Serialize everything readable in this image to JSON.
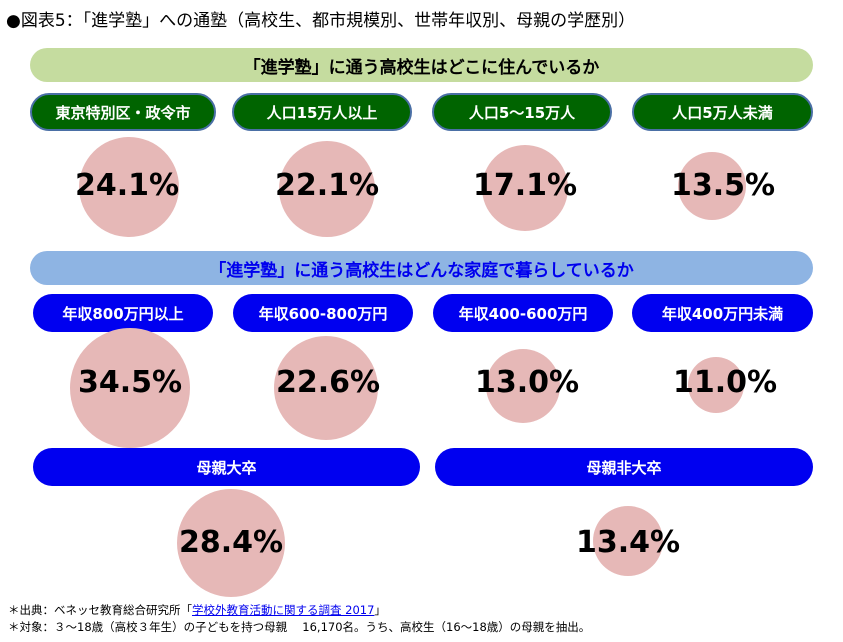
{
  "title": "●図表5：「進学塾」への通塾（高校生、都市規模別、世帯年収別、母親の学歴別）",
  "section1": {
    "heading": "「進学塾」に通う高校生はどこに住んでいるか",
    "labels": [
      "東京特別区・政令市",
      "人口15万人以上",
      "人口5～15万人",
      "人口5万人未満"
    ],
    "values": [
      "24.1%",
      "22.1%",
      "17.1%",
      "13.5%"
    ]
  },
  "section2": {
    "heading": "「進学塾」に通う高校生はどんな家庭で暮らしているか",
    "labels": [
      "年収800万円以上",
      "年収600-800万円",
      "年収400-600万円",
      "年収400万円未満"
    ],
    "values": [
      "34.5%",
      "22.6%",
      "13.0%",
      "11.0%"
    ]
  },
  "section3": {
    "labels": [
      "母親大卒",
      "母親非大卒"
    ],
    "values": [
      "28.4%",
      "13.4%"
    ]
  },
  "footnotes": {
    "source_prefix": "＊出典：ベネッセ教育総合研究所「",
    "source_link": "学校外教育活動に関する調査 2017",
    "source_suffix": "」",
    "target": "＊対象：３～18歳（高校３年生）の子どもを持つ母親　 16,170名。うち、高校生（16～18歳）の母親を抽出。"
  },
  "colors": {
    "green_band": "#c5dc9f",
    "blue_band": "#8eb4e3",
    "green_pill": "#006400",
    "blue_pill": "#0000f0",
    "bubble": "#e6b8b7"
  },
  "chart_data": {
    "type": "bubble",
    "groups": [
      {
        "categories": [
          "東京特別区・政令市",
          "人口15万人以上",
          "人口5～15万人",
          "人口5万人未満"
        ],
        "values": [
          24.1,
          22.1,
          17.1,
          13.5
        ]
      },
      {
        "categories": [
          "年収800万円以上",
          "年収600-800万円",
          "年収400-600万円",
          "年収400万円未満"
        ],
        "values": [
          34.5,
          22.6,
          13.0,
          11.0
        ]
      },
      {
        "categories": [
          "母親大卒",
          "母親非大卒"
        ],
        "values": [
          28.4,
          13.4
        ]
      }
    ]
  }
}
